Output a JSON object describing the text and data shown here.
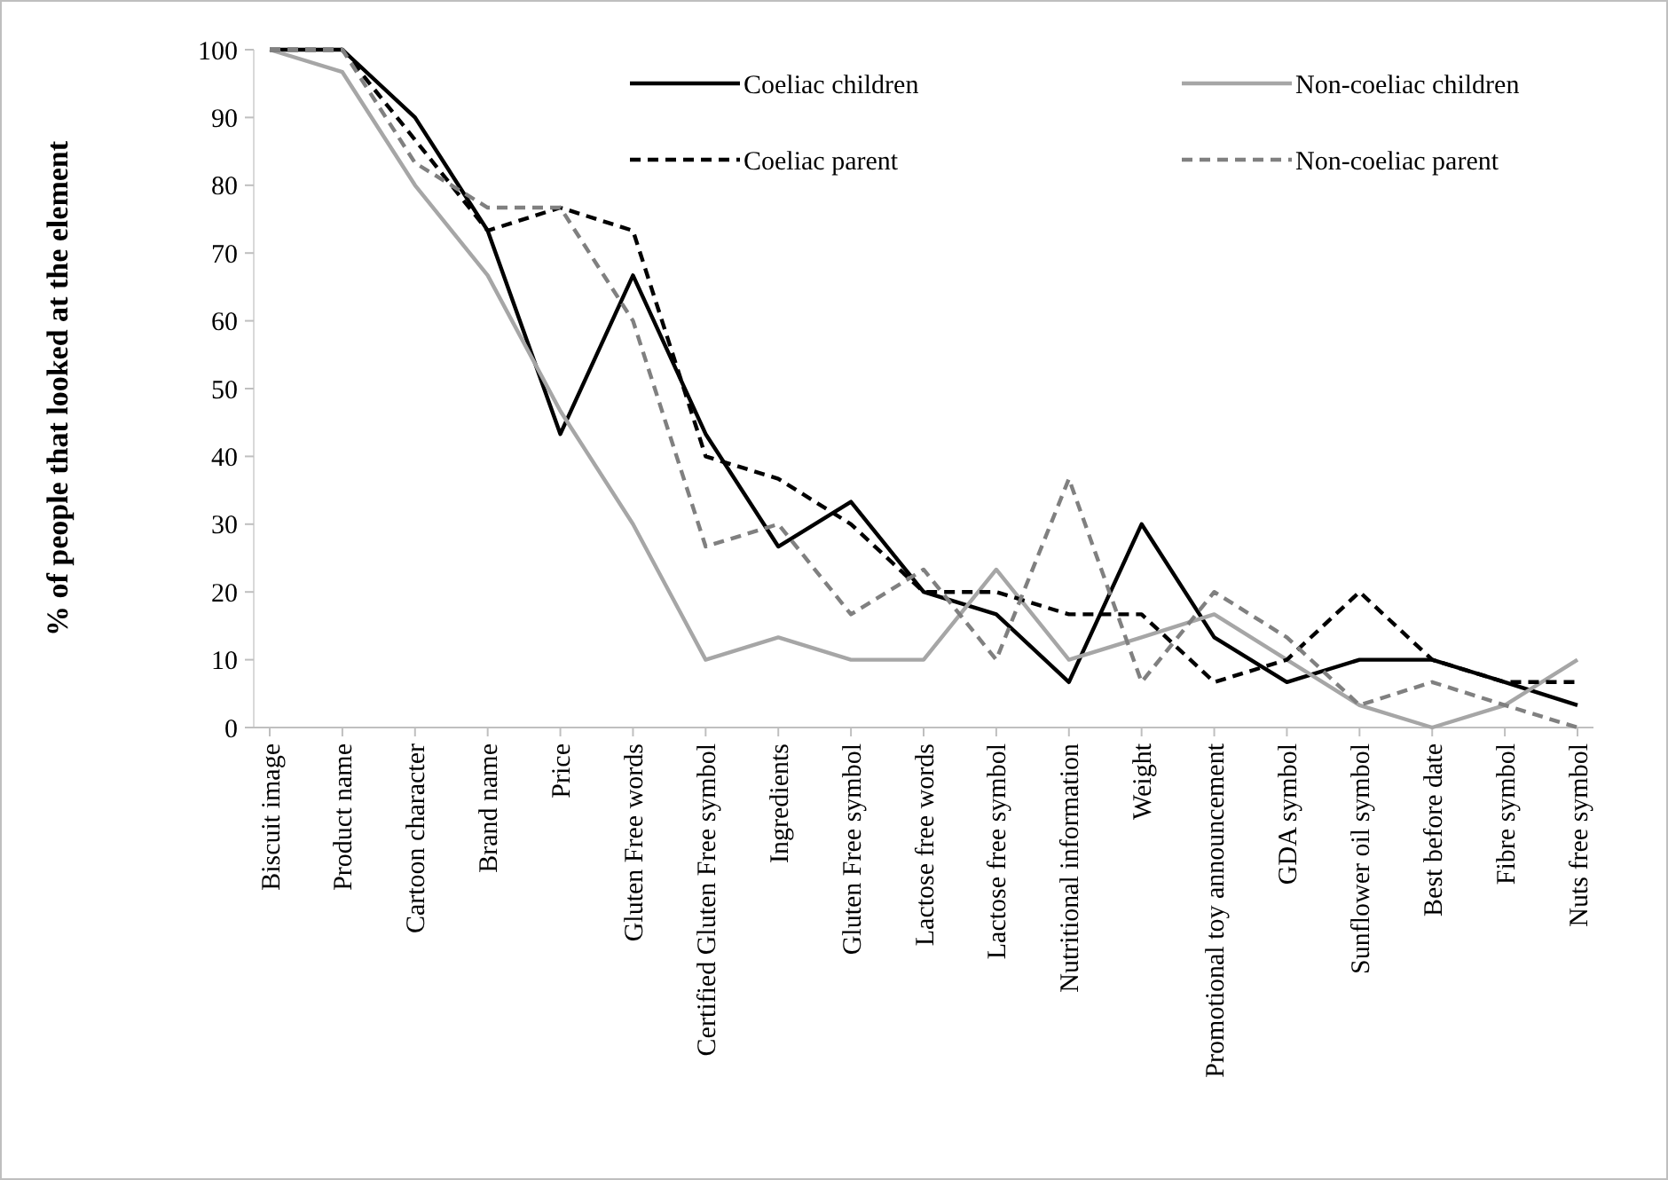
{
  "chart_data": {
    "type": "line",
    "ylabel": "% of people that looked at the element",
    "categories": [
      "Biscuit image",
      "Product name",
      "Cartoon character",
      "Brand name",
      "Price",
      "Gluten Free words",
      "Certified Gluten Free symbol",
      "Ingredients",
      "Gluten Free symbol",
      "Lactose free words",
      "Lactose free symbol",
      "Nutritional information",
      "Weight",
      "Promotional toy announcement",
      "GDA symbol",
      "Sunflower oil symbol",
      "Best before date",
      "Fibre symbol",
      "Nuts free symbol"
    ],
    "series": [
      {
        "name": "Coeliac children",
        "color": "#000000",
        "line_style": "solid",
        "values": [
          100,
          100,
          90,
          73.3,
          43.3,
          66.7,
          43.3,
          26.7,
          33.3,
          20,
          16.7,
          6.7,
          30,
          13.3,
          6.7,
          10,
          10,
          6.7,
          3.3
        ]
      },
      {
        "name": "Non-coeliac children",
        "color": "#a6a6a6",
        "line_style": "solid",
        "values": [
          100,
          96.7,
          80,
          66.7,
          46.7,
          30,
          10,
          13.3,
          10,
          10,
          23.3,
          10,
          13.3,
          16.7,
          10,
          3.3,
          0,
          3.3,
          10
        ]
      },
      {
        "name": "Coeliac parent",
        "color": "#000000",
        "line_style": "dashed",
        "values": [
          100,
          100,
          86.7,
          73.3,
          76.7,
          73.3,
          40,
          36.7,
          30,
          20,
          20,
          16.7,
          16.7,
          6.7,
          10,
          20,
          10,
          6.7,
          6.7
        ]
      },
      {
        "name": "Non-coeliac parent",
        "color": "#808080",
        "line_style": "dashed",
        "values": [
          100,
          100,
          83.3,
          76.7,
          76.7,
          60,
          26.7,
          30,
          16.7,
          23.3,
          10,
          36.7,
          6.7,
          20,
          13.3,
          3.3,
          6.7,
          3.3,
          0
        ]
      }
    ],
    "ylim": [
      0,
      100
    ],
    "yticks": [
      0,
      10,
      20,
      30,
      40,
      50,
      60,
      70,
      80,
      90,
      100
    ],
    "grid": false,
    "legend": "top right",
    "marker": "none"
  }
}
